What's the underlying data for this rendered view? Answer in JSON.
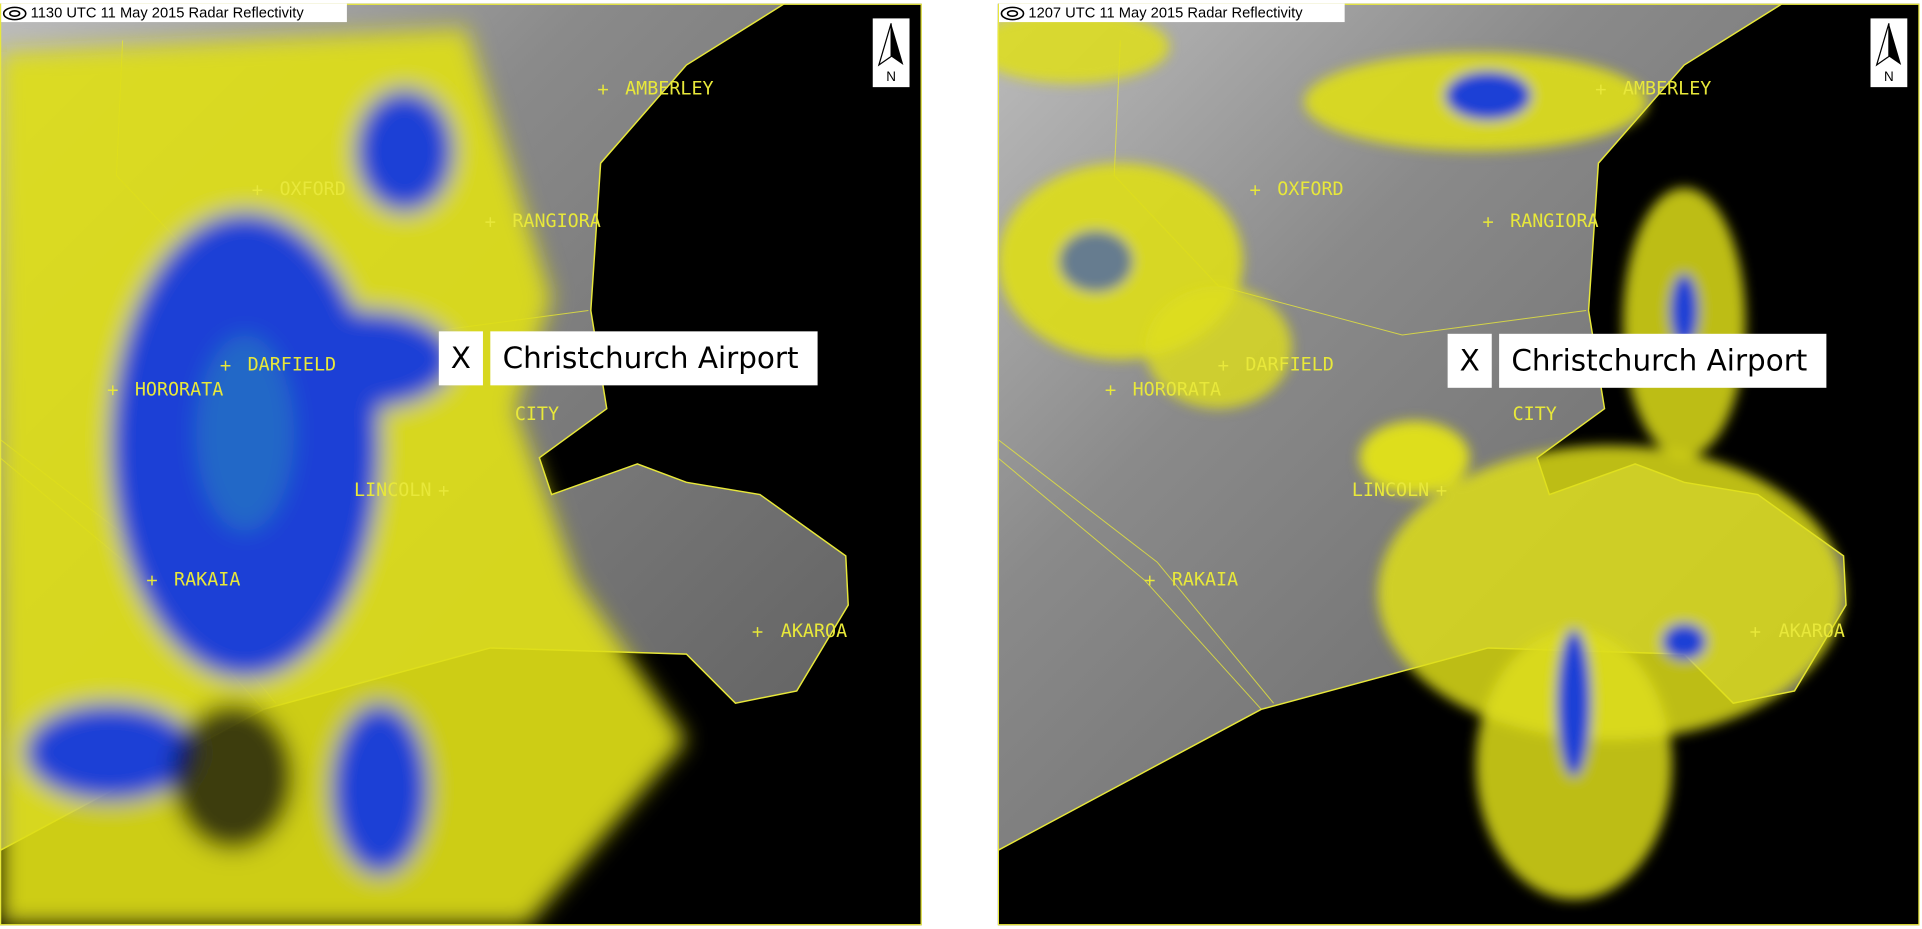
{
  "panels": [
    {
      "title": "1130 UTC 11 May 2015 Radar Reflectivity",
      "north": "N",
      "airport_marker": "X",
      "airport_label": "Christchurch Airport",
      "places": [
        "AMBERLEY",
        "OXFORD",
        "RANGIORA",
        "DARFIELD",
        "HORORATA",
        "CITY",
        "LINCOLN",
        "RAKAIA",
        "AKAROA"
      ]
    },
    {
      "title": "1207 UTC 11 May 2015 Radar Reflectivity",
      "north": "N",
      "airport_marker": "X",
      "airport_label": "Christchurch Airport",
      "places": [
        "AMBERLEY",
        "OXFORD",
        "RANGIORA",
        "DARFIELD",
        "HORORATA",
        "CITY",
        "LINCOLN",
        "RAKAIA",
        "AKAROA"
      ]
    }
  ]
}
